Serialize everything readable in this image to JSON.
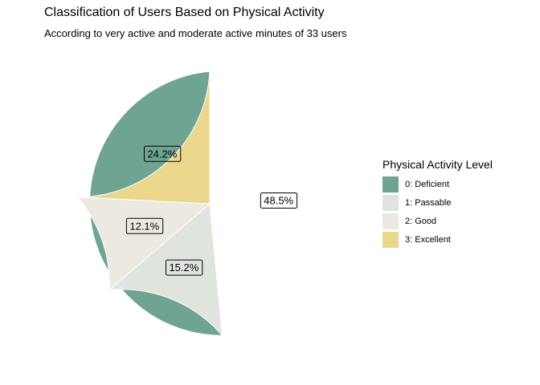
{
  "chart_data": {
    "type": "pie",
    "title": "Classification of Users Based on Physical Activity",
    "subtitle": "According to very active and moderate active minutes of 33 users",
    "legend": {
      "title": "Physical Activity Level",
      "placement": "right"
    },
    "slices": [
      {
        "label": "0: Deficient",
        "value": 48.5,
        "display": "48.5%",
        "color": "#6fa392"
      },
      {
        "label": "1: Passable",
        "value": 15.2,
        "display": "15.2%",
        "color": "#dfe4de"
      },
      {
        "label": "2: Good",
        "value": 12.1,
        "display": "12.1%",
        "color": "#eceae0"
      },
      {
        "label": "3: Excellent",
        "value": 24.2,
        "display": "24.2%",
        "color": "#ebd78c"
      }
    ]
  }
}
